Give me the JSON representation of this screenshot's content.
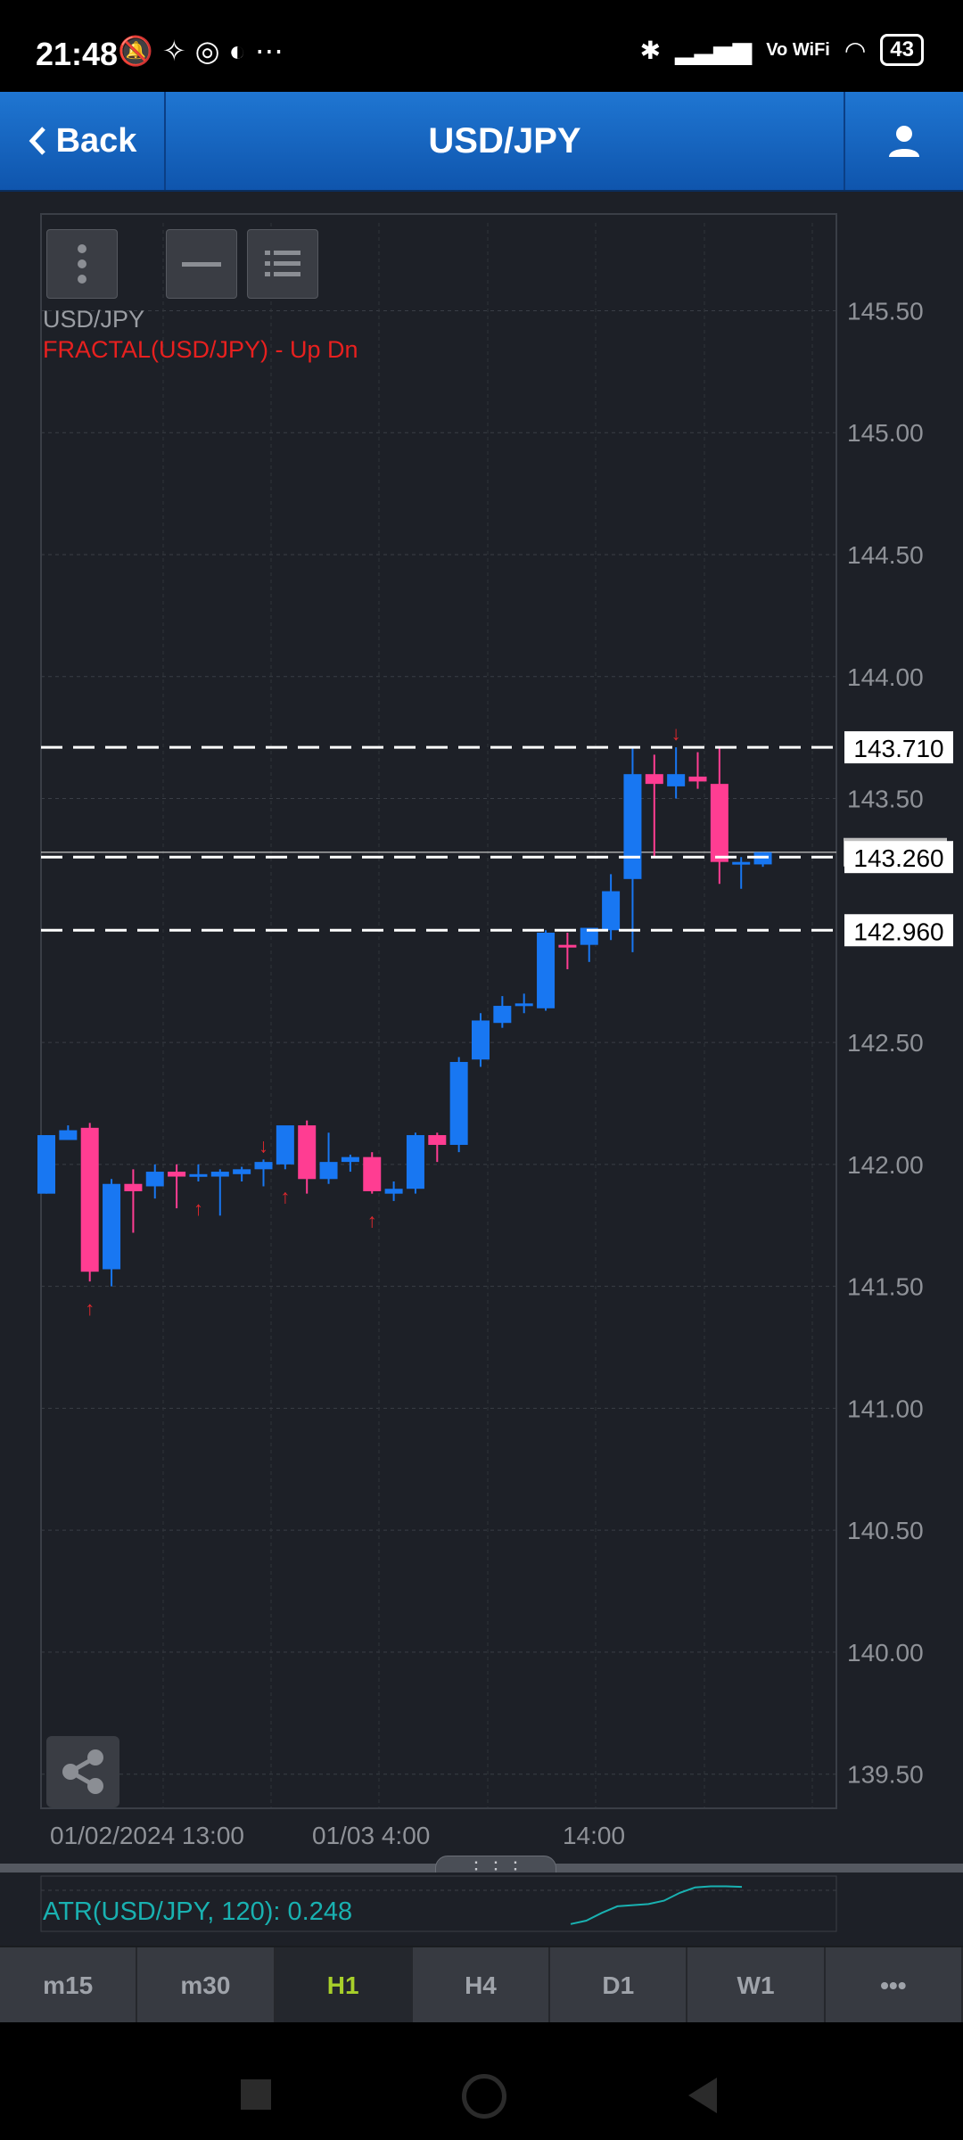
{
  "status_bar": {
    "time": "21:48",
    "battery": "43",
    "network": "Vo WiFi",
    "left_icons": [
      "bell-off-icon",
      "hotspot-icon",
      "q-app-icon",
      "app-icon",
      "more-dots"
    ],
    "right_icons": [
      "bluetooth-icon",
      "signal-icon",
      "vowifi-icon",
      "wifi-icon",
      "battery-icon"
    ]
  },
  "header": {
    "back_label": "Back",
    "title": "USD/JPY",
    "user_icon": "user-icon"
  },
  "chart": {
    "symbol_label": "USD/JPY",
    "indicator_label": "FRACTAL(USD/JPY) - Up Dn",
    "colors": {
      "background": "#1d2027",
      "up_candle": "#1877f2",
      "down_candle": "#ff3d92",
      "fractal_arrow": "#e0282e",
      "price_axis_text": "#8f9298",
      "current_price_line": "#c8c8c8",
      "atr_line": "#19b1b1"
    }
  },
  "chart_data": {
    "type": "candlestick",
    "title": "USD/JPY",
    "timeframe": "H1",
    "y_ticks": [
      "145.50",
      "145.00",
      "144.50",
      "144.00",
      "143.50",
      "142.50",
      "142.00",
      "141.50",
      "141.00",
      "140.50",
      "140.00",
      "139.50"
    ],
    "ylim": [
      139.36,
      145.86
    ],
    "x_ticks": [
      {
        "label": "01/02/2024 13:00",
        "index": 0
      },
      {
        "label": "01/03 4:00",
        "index": 15
      },
      {
        "label": "14:00",
        "index": 25
      }
    ],
    "candles": [
      {
        "o": 141.88,
        "h": 142.12,
        "l": 141.88,
        "c": 142.12
      },
      {
        "o": 142.1,
        "h": 142.16,
        "l": 142.1,
        "c": 142.14
      },
      {
        "o": 142.15,
        "h": 142.17,
        "l": 141.52,
        "c": 141.56
      },
      {
        "o": 141.57,
        "h": 141.94,
        "l": 141.5,
        "c": 141.92
      },
      {
        "o": 141.92,
        "h": 141.98,
        "l": 141.72,
        "c": 141.89
      },
      {
        "o": 141.91,
        "h": 142.0,
        "l": 141.86,
        "c": 141.97
      },
      {
        "o": 141.97,
        "h": 142.0,
        "l": 141.82,
        "c": 141.95
      },
      {
        "o": 141.95,
        "h": 142.0,
        "l": 141.93,
        "c": 141.96
      },
      {
        "o": 141.95,
        "h": 141.98,
        "l": 141.79,
        "c": 141.97
      },
      {
        "o": 141.96,
        "h": 141.99,
        "l": 141.93,
        "c": 141.98
      },
      {
        "o": 141.98,
        "h": 142.02,
        "l": 141.91,
        "c": 142.01
      },
      {
        "o": 142.0,
        "h": 142.15,
        "l": 141.98,
        "c": 142.16
      },
      {
        "o": 142.16,
        "h": 142.18,
        "l": 141.88,
        "c": 141.94
      },
      {
        "o": 141.94,
        "h": 142.13,
        "l": 141.92,
        "c": 142.01
      },
      {
        "o": 142.01,
        "h": 142.04,
        "l": 141.97,
        "c": 142.03
      },
      {
        "o": 142.03,
        "h": 142.05,
        "l": 141.88,
        "c": 141.89
      },
      {
        "o": 141.88,
        "h": 141.93,
        "l": 141.85,
        "c": 141.9
      },
      {
        "o": 141.9,
        "h": 142.13,
        "l": 141.88,
        "c": 142.12
      },
      {
        "o": 142.12,
        "h": 142.13,
        "l": 142.01,
        "c": 142.08
      },
      {
        "o": 142.08,
        "h": 142.44,
        "l": 142.05,
        "c": 142.42
      },
      {
        "o": 142.43,
        "h": 142.62,
        "l": 142.4,
        "c": 142.59
      },
      {
        "o": 142.58,
        "h": 142.69,
        "l": 142.56,
        "c": 142.65
      },
      {
        "o": 142.65,
        "h": 142.7,
        "l": 142.62,
        "c": 142.66
      },
      {
        "o": 142.64,
        "h": 142.96,
        "l": 142.63,
        "c": 142.95
      },
      {
        "o": 142.9,
        "h": 142.95,
        "l": 142.8,
        "c": 142.89
      },
      {
        "o": 142.9,
        "h": 142.97,
        "l": 142.83,
        "c": 142.97
      },
      {
        "o": 142.96,
        "h": 143.19,
        "l": 142.92,
        "c": 143.12
      },
      {
        "o": 143.17,
        "h": 143.71,
        "l": 142.87,
        "c": 143.6
      },
      {
        "o": 143.6,
        "h": 143.68,
        "l": 143.26,
        "c": 143.56
      },
      {
        "o": 143.55,
        "h": 143.71,
        "l": 143.5,
        "c": 143.6
      },
      {
        "o": 143.59,
        "h": 143.69,
        "l": 143.54,
        "c": 143.57
      },
      {
        "o": 143.56,
        "h": 143.71,
        "l": 143.15,
        "c": 143.24
      },
      {
        "o": 143.24,
        "h": 143.26,
        "l": 143.13,
        "c": 143.24
      },
      {
        "o": 143.23,
        "h": 143.28,
        "l": 143.22,
        "c": 143.28
      }
    ],
    "fractal_up_arrows_at_index": [
      2,
      7,
      11,
      15
    ],
    "fractal_down_arrows_at_index": [
      10,
      29
    ],
    "horizontal_lines": [
      {
        "value": 143.71,
        "label": "143.710",
        "style": "dashed"
      },
      {
        "value": 143.26,
        "label": "143.260",
        "style": "dashed"
      },
      {
        "value": 142.96,
        "label": "142.960",
        "style": "dashed"
      }
    ],
    "current_price": 143.28,
    "grid": true
  },
  "atr": {
    "label": "ATR(USD/JPY, 120): 0.248",
    "values": [
      0.18,
      0.186,
      0.2,
      0.212,
      0.214,
      0.216,
      0.222,
      0.236,
      0.246,
      0.248,
      0.248,
      0.247
    ]
  },
  "timeframes": [
    {
      "label": "m15",
      "active": false
    },
    {
      "label": "m30",
      "active": false
    },
    {
      "label": "H1",
      "active": true
    },
    {
      "label": "H4",
      "active": false
    },
    {
      "label": "D1",
      "active": false
    },
    {
      "label": "W1",
      "active": false
    },
    {
      "label": "•••",
      "active": false
    }
  ],
  "navbar": {
    "icons": [
      "recent-apps-icon",
      "home-icon",
      "back-icon"
    ]
  }
}
